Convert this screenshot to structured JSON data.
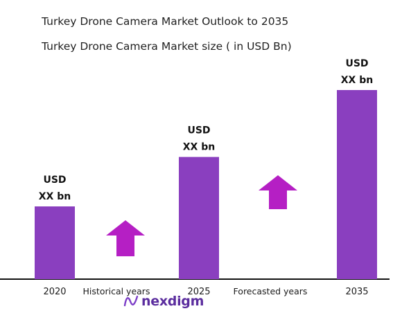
{
  "header": {
    "title": "Turkey Drone Camera Market Outlook to 2035",
    "subtitle": "Turkey Drone Camera Market size ( in USD Bn)"
  },
  "chart_data": {
    "type": "bar",
    "categories": [
      "2020",
      "2025",
      "2035"
    ],
    "values": [
      1.0,
      1.68,
      2.6
    ],
    "value_labels": [
      [
        "USD",
        "XX bn"
      ],
      [
        "USD",
        "XX bn"
      ],
      [
        "USD",
        "XX bn"
      ]
    ],
    "period_labels": [
      "Historical years",
      "Forecasted years"
    ],
    "ylim": [
      0,
      2.6
    ],
    "grid": false,
    "bar_color": "#8a3fbf",
    "arrow_color": "#b51fc4",
    "axis_color": "#111111"
  },
  "logo": {
    "text": "nexdigm",
    "icon": "nexdigm-wave-logo-icon",
    "color": "#5b2d9e"
  }
}
